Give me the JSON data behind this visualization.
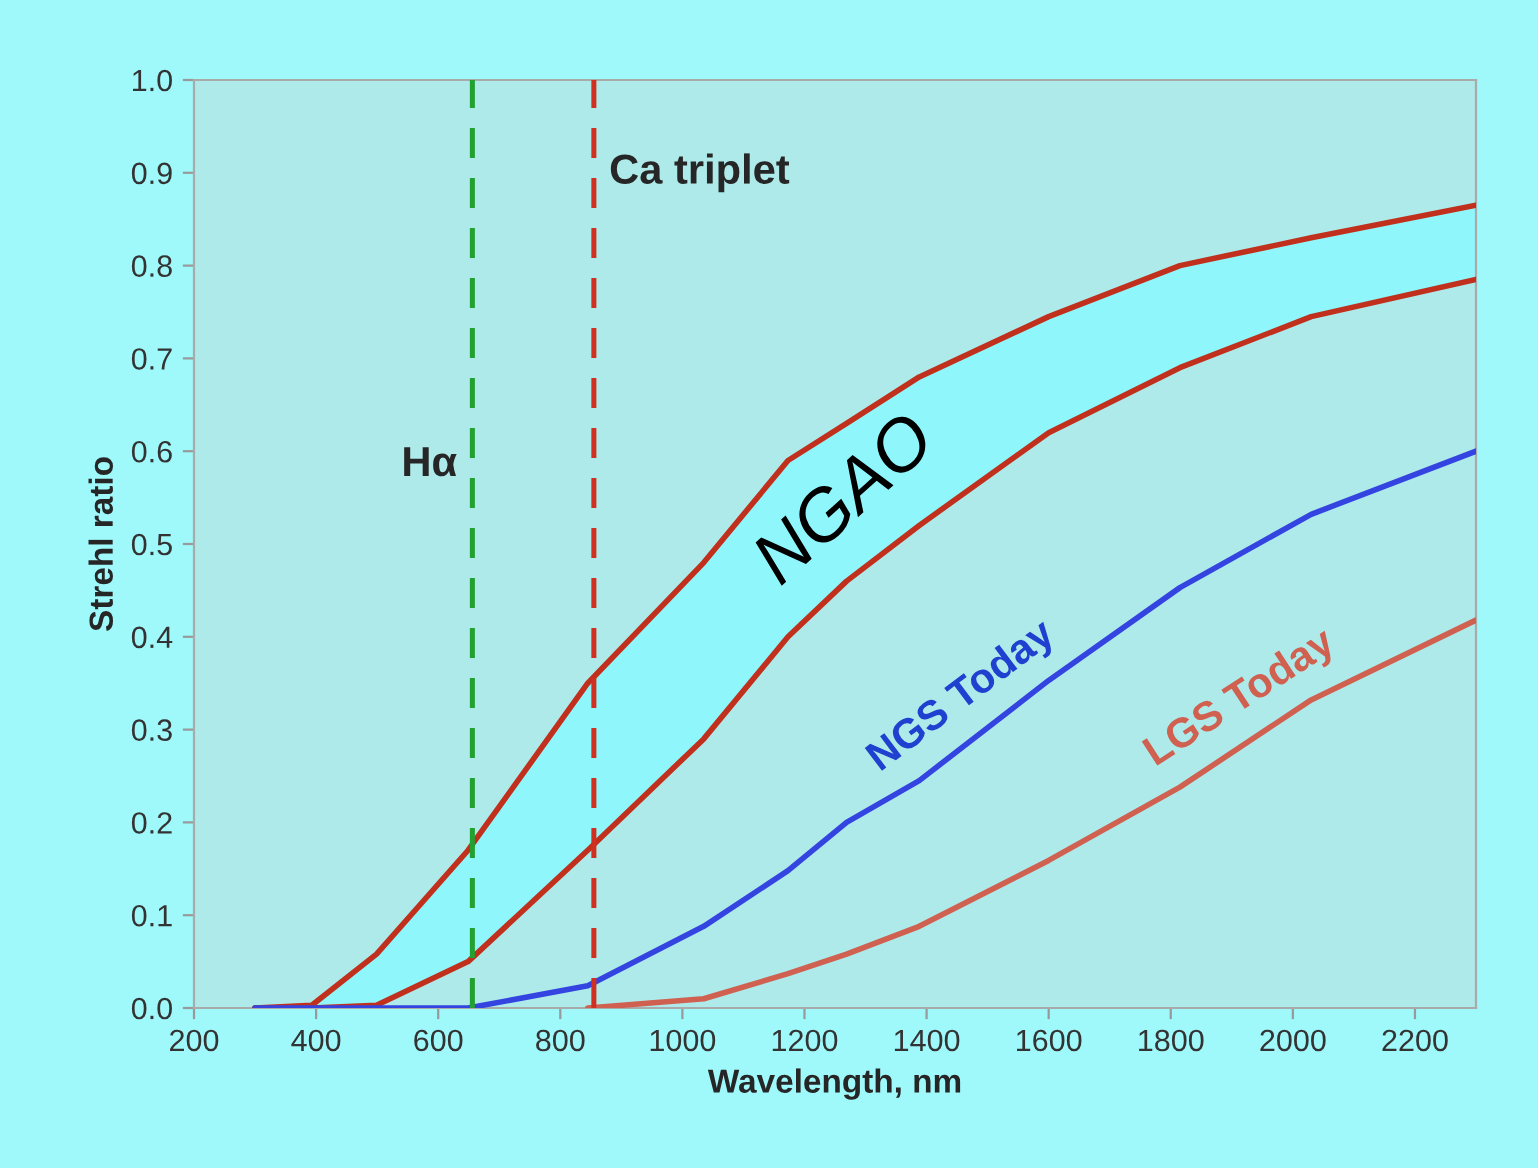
{
  "chart_data": {
    "type": "line",
    "xlabel": "Wavelength, nm",
    "ylabel": "Strehl ratio",
    "x": [
      300,
      393,
      499,
      649,
      845,
      1035,
      1173,
      1269,
      1388,
      1600,
      1815,
      2030,
      2300
    ],
    "series": [
      {
        "name": "NGAO",
        "color": "#c0301c",
        "values": [
          0,
          0.003,
          0.058,
          0.17,
          0.35,
          0.48,
          0.59,
          0.63,
          0.68,
          0.745,
          0.8,
          0.83,
          0.865
        ],
        "lower": [
          0,
          0,
          0.003,
          0.05,
          0.17,
          0.29,
          0.4,
          0.46,
          0.52,
          0.62,
          0.69,
          0.745,
          0.785
        ],
        "upper": [
          0,
          0.003,
          0.058,
          0.17,
          0.35,
          0.48,
          0.59,
          0.63,
          0.68,
          0.745,
          0.8,
          0.83,
          0.865
        ]
      },
      {
        "color": "#c0301c",
        "values": [
          0,
          0,
          0.003,
          0.05,
          0.17,
          0.29,
          0.4,
          0.46,
          0.52,
          0.62,
          0.69,
          0.745,
          0.785
        ]
      },
      {
        "name": "NGS Today",
        "color": "#3344e0",
        "values": [
          0,
          0,
          0,
          0,
          0.024,
          0.088,
          0.148,
          0.2,
          0.245,
          0.353,
          0.453,
          0.532,
          0.6
        ]
      },
      {
        "name": "LGS Today",
        "color": "#d06050",
        "x": [
          845,
          1035,
          1173,
          1269,
          1388,
          1600,
          1815,
          2030,
          2300
        ],
        "values": [
          0,
          0.01,
          0.037,
          0.058,
          0.088,
          0.159,
          0.238,
          0.332,
          0.418
        ]
      }
    ],
    "ref_lines": [
      {
        "axis": "x",
        "value": 656,
        "label": "Hα",
        "color": "#22a030",
        "line_style": "dashed"
      },
      {
        "axis": "x",
        "value": 855,
        "label": "Ca triplet",
        "color": "#d03020",
        "line_style": "dashed"
      }
    ],
    "xlim": [
      200,
      2300
    ],
    "xticks": [
      200,
      400,
      600,
      800,
      1000,
      1200,
      1400,
      1600,
      1800,
      2000,
      2200
    ],
    "ylim": [
      0,
      1.0
    ],
    "yticks": [
      {
        "value": 0,
        "label": "0.0"
      },
      0.1,
      0.2,
      0.3,
      0.4,
      0.5,
      0.6,
      0.7,
      0.8,
      0.9,
      {
        "value": 1.0,
        "label": "1.0"
      }
    ],
    "grid": false,
    "legend": false,
    "marker": "none",
    "line_style": "solid"
  }
}
